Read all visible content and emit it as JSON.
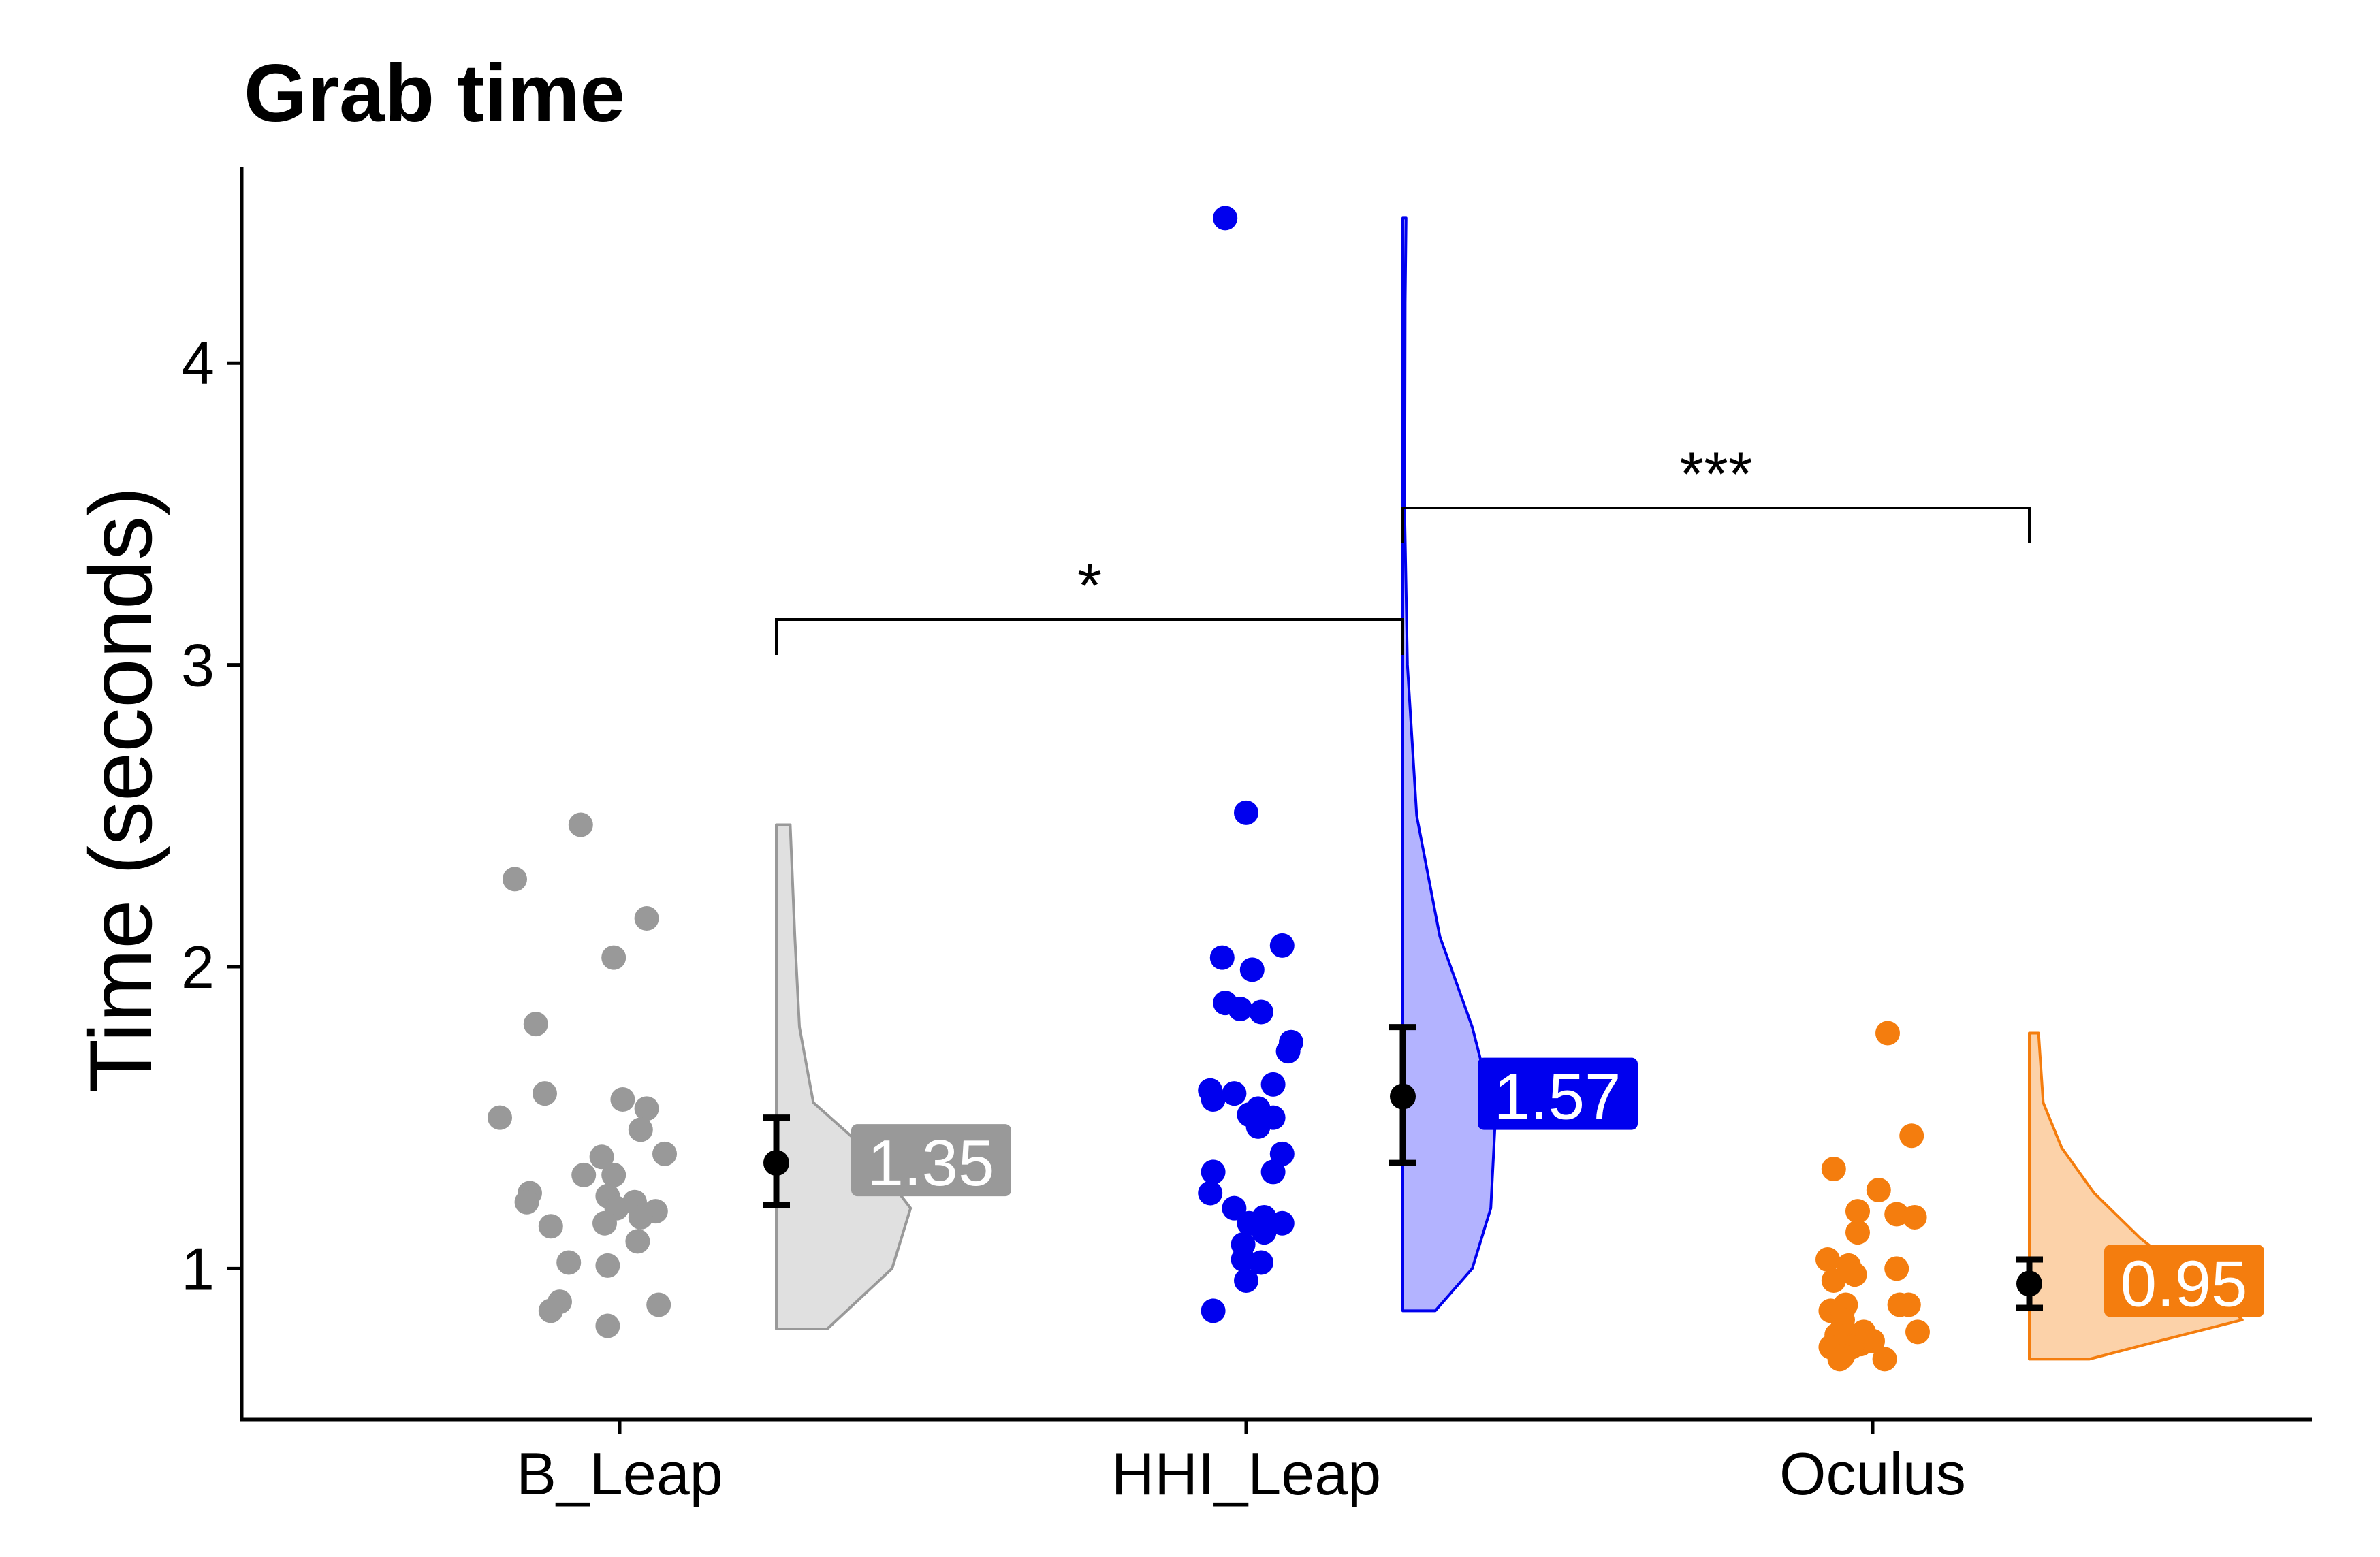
{
  "chart_data": {
    "type": "raincloud",
    "title": "Grab time",
    "ylabel": "Time (seconds)",
    "xlabel": "",
    "ylim": [
      0.5,
      4.65
    ],
    "yticks": [
      1,
      2,
      3,
      4
    ],
    "categories": [
      "B_Leap",
      "HHI_Leap",
      "Oculus"
    ],
    "series": [
      {
        "category": "B_Leap",
        "color": "#999999",
        "fill": "#e0e0e0",
        "mean": 1.35,
        "ci": [
          1.21,
          1.5
        ],
        "label": "1.35",
        "points": [
          {
            "x": -0.13,
            "y": 2.47
          },
          {
            "x": -0.35,
            "y": 2.29
          },
          {
            "x": 0.09,
            "y": 2.16
          },
          {
            "x": -0.02,
            "y": 2.03
          },
          {
            "x": -0.28,
            "y": 1.81
          },
          {
            "x": -0.25,
            "y": 1.58
          },
          {
            "x": 0.01,
            "y": 1.56
          },
          {
            "x": 0.09,
            "y": 1.53
          },
          {
            "x": -0.4,
            "y": 1.5
          },
          {
            "x": 0.07,
            "y": 1.46
          },
          {
            "x": 0.15,
            "y": 1.38
          },
          {
            "x": -0.06,
            "y": 1.37
          },
          {
            "x": -0.02,
            "y": 1.31
          },
          {
            "x": -0.12,
            "y": 1.31
          },
          {
            "x": -0.3,
            "y": 1.25
          },
          {
            "x": -0.04,
            "y": 1.24
          },
          {
            "x": -0.31,
            "y": 1.22
          },
          {
            "x": 0.05,
            "y": 1.22
          },
          {
            "x": 0.12,
            "y": 1.19
          },
          {
            "x": -0.01,
            "y": 1.2
          },
          {
            "x": 0.07,
            "y": 1.17
          },
          {
            "x": -0.05,
            "y": 1.15
          },
          {
            "x": -0.23,
            "y": 1.14
          },
          {
            "x": 0.06,
            "y": 1.09
          },
          {
            "x": -0.17,
            "y": 1.02
          },
          {
            "x": -0.04,
            "y": 1.01
          },
          {
            "x": -0.2,
            "y": 0.89
          },
          {
            "x": 0.13,
            "y": 0.88
          },
          {
            "x": -0.23,
            "y": 0.86
          },
          {
            "x": -0.04,
            "y": 0.81
          }
        ],
        "density": [
          [
            0.8,
            0.11
          ],
          [
            1.0,
            0.25
          ],
          [
            1.2,
            0.29
          ],
          [
            1.4,
            0.19
          ],
          [
            1.55,
            0.08
          ],
          [
            1.8,
            0.05
          ],
          [
            2.1,
            0.04
          ],
          [
            2.47,
            0.03
          ]
        ]
      },
      {
        "category": "HHI_Leap",
        "color": "#0000ee",
        "fill": "#b3b3ff",
        "mean": 1.57,
        "ci": [
          1.35,
          1.8
        ],
        "label": "1.57",
        "points": [
          {
            "x": -0.07,
            "y": 4.48
          },
          {
            "x": 0,
            "y": 2.51
          },
          {
            "x": 0.12,
            "y": 2.07
          },
          {
            "x": -0.08,
            "y": 2.03
          },
          {
            "x": 0.02,
            "y": 1.99
          },
          {
            "x": -0.07,
            "y": 1.88
          },
          {
            "x": -0.02,
            "y": 1.86
          },
          {
            "x": 0.05,
            "y": 1.85
          },
          {
            "x": 0.15,
            "y": 1.75
          },
          {
            "x": 0.14,
            "y": 1.72
          },
          {
            "x": 0.09,
            "y": 1.61
          },
          {
            "x": -0.12,
            "y": 1.59
          },
          {
            "x": -0.11,
            "y": 1.56
          },
          {
            "x": -0.04,
            "y": 1.58
          },
          {
            "x": 0.04,
            "y": 1.53
          },
          {
            "x": 0.01,
            "y": 1.51
          },
          {
            "x": 0.09,
            "y": 1.5
          },
          {
            "x": 0.04,
            "y": 1.47
          },
          {
            "x": 0.12,
            "y": 1.38
          },
          {
            "x": 0.09,
            "y": 1.32
          },
          {
            "x": -0.11,
            "y": 1.32
          },
          {
            "x": -0.12,
            "y": 1.25
          },
          {
            "x": -0.04,
            "y": 1.2
          },
          {
            "x": 0.06,
            "y": 1.17
          },
          {
            "x": 0.12,
            "y": 1.15
          },
          {
            "x": 0.01,
            "y": 1.15
          },
          {
            "x": 0.06,
            "y": 1.12
          },
          {
            "x": -0.01,
            "y": 1.08
          },
          {
            "x": -0.01,
            "y": 1.03
          },
          {
            "x": 0.05,
            "y": 1.02
          },
          {
            "x": 0,
            "y": 0.96
          },
          {
            "x": -0.11,
            "y": 0.86
          }
        ],
        "density": [
          [
            0.86,
            0.07
          ],
          [
            1.0,
            0.15
          ],
          [
            1.2,
            0.19
          ],
          [
            1.5,
            0.2
          ],
          [
            1.8,
            0.15
          ],
          [
            2.1,
            0.08
          ],
          [
            2.5,
            0.03
          ],
          [
            3.0,
            0.01
          ],
          [
            3.5,
            0.004
          ],
          [
            4.2,
            0.005
          ],
          [
            4.48,
            0.007
          ]
        ]
      },
      {
        "category": "Oculus",
        "color": "#f47d0e",
        "fill": "#fcd2a9",
        "mean": 0.95,
        "ci": [
          0.87,
          1.03
        ],
        "label": "0.95",
        "points": [
          {
            "x": 0.05,
            "y": 1.78
          },
          {
            "x": 0.13,
            "y": 1.44
          },
          {
            "x": -0.13,
            "y": 1.33
          },
          {
            "x": 0.02,
            "y": 1.26
          },
          {
            "x": -0.05,
            "y": 1.19
          },
          {
            "x": 0.08,
            "y": 1.18
          },
          {
            "x": 0.14,
            "y": 1.17
          },
          {
            "x": -0.05,
            "y": 1.12
          },
          {
            "x": -0.15,
            "y": 1.03
          },
          {
            "x": -0.08,
            "y": 1.01
          },
          {
            "x": 0.08,
            "y": 1.0
          },
          {
            "x": -0.06,
            "y": 0.98
          },
          {
            "x": -0.13,
            "y": 0.96
          },
          {
            "x": 0.12,
            "y": 0.88
          },
          {
            "x": -0.09,
            "y": 0.88
          },
          {
            "x": 0.09,
            "y": 0.88
          },
          {
            "x": -0.14,
            "y": 0.86
          },
          {
            "x": -0.1,
            "y": 0.86
          },
          {
            "x": -0.1,
            "y": 0.83
          },
          {
            "x": -0.03,
            "y": 0.79
          },
          {
            "x": 0.15,
            "y": 0.79
          },
          {
            "x": -0.12,
            "y": 0.78
          },
          {
            "x": -0.08,
            "y": 0.78
          },
          {
            "x": 0,
            "y": 0.76
          },
          {
            "x": -0.04,
            "y": 0.75
          },
          {
            "x": -0.14,
            "y": 0.74
          },
          {
            "x": -0.07,
            "y": 0.74
          },
          {
            "x": -0.1,
            "y": 0.71
          },
          {
            "x": 0.04,
            "y": 0.7
          },
          {
            "x": -0.11,
            "y": 0.7
          }
        ],
        "density": [
          [
            0.7,
            0.13
          ],
          [
            0.76,
            0.28
          ],
          [
            0.83,
            0.46
          ],
          [
            0.9,
            0.41
          ],
          [
            0.98,
            0.34
          ],
          [
            1.1,
            0.24
          ],
          [
            1.25,
            0.14
          ],
          [
            1.4,
            0.07
          ],
          [
            1.55,
            0.03
          ],
          [
            1.78,
            0.02
          ]
        ]
      }
    ],
    "significance": [
      {
        "from": "B_Leap",
        "to": "HHI_Leap",
        "label": "*",
        "y": 3.15
      },
      {
        "from": "HHI_Leap",
        "to": "Oculus",
        "label": "***",
        "y": 3.52
      }
    ]
  }
}
